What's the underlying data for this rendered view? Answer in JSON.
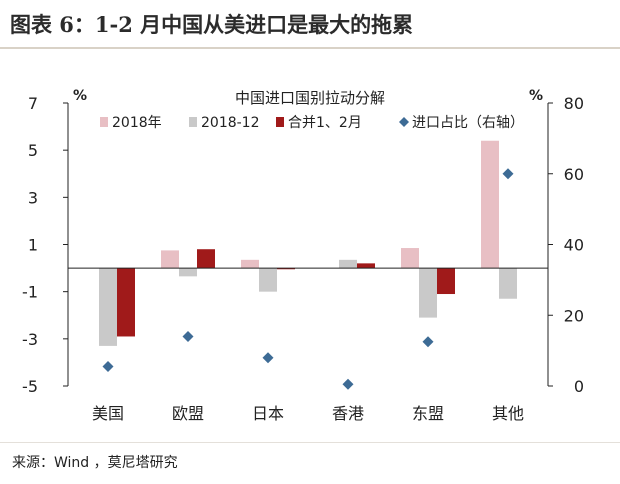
{
  "figure": {
    "title": "图表 6：1-2 月中国从美进口是最大的拖累",
    "source": "来源：Wind ，莫尼塔研究"
  },
  "chart_data": {
    "type": "bar",
    "title": "中国进口国别拉动分解",
    "categories": [
      "美国",
      "欧盟",
      "日本",
      "香港",
      "东盟",
      "其他"
    ],
    "series": [
      {
        "name": "2018年",
        "type": "bar",
        "axis": "left",
        "color": "#e8bfc4",
        "values": [
          0.0,
          0.75,
          0.35,
          0.0,
          0.85,
          5.4
        ]
      },
      {
        "name": "2018-12",
        "type": "bar",
        "axis": "left",
        "color": "#c9c9c9",
        "values": [
          -3.3,
          -0.35,
          -1.0,
          0.35,
          -2.1,
          -1.3
        ]
      },
      {
        "name": "合并1、2月",
        "type": "bar",
        "axis": "left",
        "color": "#a01a1a",
        "values": [
          -2.9,
          0.8,
          -0.05,
          0.2,
          -1.1,
          0.0
        ]
      },
      {
        "name": "进口占比（右轴）",
        "type": "scatter",
        "axis": "right",
        "color": "#3d6b95",
        "values": [
          5.5,
          14.0,
          8.0,
          0.5,
          12.5,
          60.0
        ]
      }
    ],
    "left_axis": {
      "unit": "%",
      "ylim": [
        -5,
        7
      ],
      "ticks": [
        7,
        5,
        3,
        1,
        -1,
        -3,
        -5
      ]
    },
    "right_axis": {
      "unit": "%",
      "ylim": [
        0,
        80
      ],
      "ticks": [
        80,
        60,
        40,
        20,
        0
      ]
    },
    "grid": false,
    "legend": "top"
  }
}
